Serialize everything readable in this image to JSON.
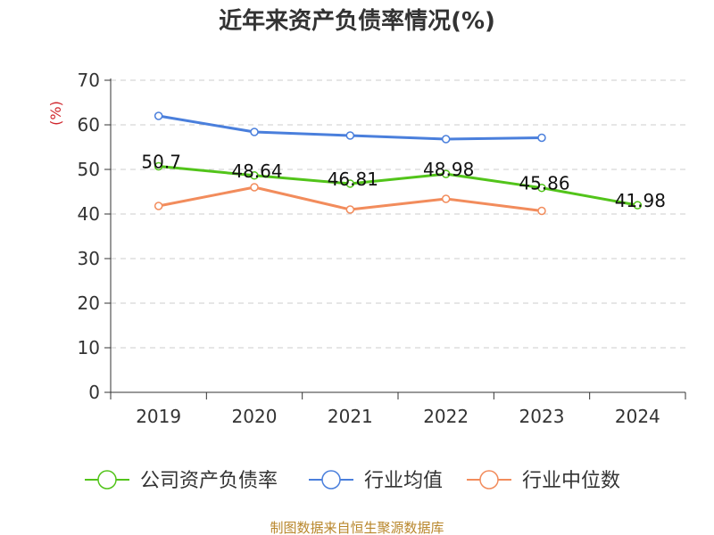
{
  "chart_data": {
    "type": "line",
    "title": "近年来资产负债率情况(%)",
    "ylabel": "(%)",
    "xlabel": "",
    "categories": [
      "2019",
      "2020",
      "2021",
      "2022",
      "2023",
      "2024"
    ],
    "ylim": [
      0,
      70
    ],
    "yticks": [
      0,
      10,
      20,
      30,
      40,
      50,
      60,
      70
    ],
    "grid": true,
    "legend_position": "bottom",
    "series": [
      {
        "name": "公司资产负债率",
        "color": "#52c41a",
        "values": [
          50.7,
          48.64,
          46.81,
          48.98,
          45.86,
          41.98
        ],
        "data_labels": [
          "50.7",
          "48.64",
          "46.81",
          "48.98",
          "45.86",
          "41.98"
        ]
      },
      {
        "name": "行业均值",
        "color": "#4a7fdc",
        "values": [
          62.0,
          58.4,
          57.6,
          56.8,
          57.1,
          null
        ]
      },
      {
        "name": "行业中位数",
        "color": "#f28c5c",
        "values": [
          41.8,
          46.0,
          41.0,
          43.4,
          40.7,
          null
        ]
      }
    ],
    "source": "制图数据来自恒生聚源数据库"
  }
}
